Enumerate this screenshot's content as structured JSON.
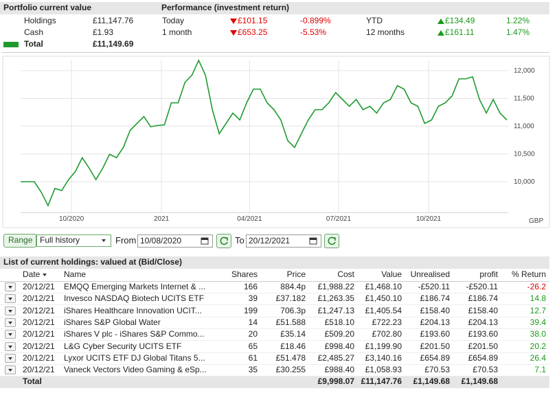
{
  "summary": {
    "title": "Portfolio current value",
    "rows": [
      {
        "label": "Holdings",
        "value": "£11,147.76"
      },
      {
        "label": "Cash",
        "value": "£1.93"
      },
      {
        "label": "Total",
        "value": "£11,149.69"
      }
    ]
  },
  "performance": {
    "title": "Performance (investment return)",
    "rows": [
      {
        "period": "Today",
        "change": "£101.15",
        "pct": "-0.899%",
        "direction": "down"
      },
      {
        "period": "1 month",
        "change": "£653.25",
        "pct": "-5.53%",
        "direction": "down"
      },
      {
        "period": "YTD",
        "change": "£134.49",
        "pct": "1.22%",
        "direction": "up"
      },
      {
        "period": "12 months",
        "change": "£161.11",
        "pct": "1.47%",
        "direction": "up"
      }
    ]
  },
  "chart_data": {
    "type": "line",
    "color": "#1f9a2f",
    "values": [
      10000,
      10000,
      10000,
      9815,
      9570,
      9877,
      9840,
      10037,
      10185,
      10432,
      10247,
      10037,
      10247,
      10494,
      10432,
      10617,
      10926,
      11049,
      11173,
      10988,
      11012,
      11025,
      11420,
      11420,
      11790,
      11914,
      12185,
      11914,
      11296,
      10864,
      11049,
      11235,
      11111,
      11420,
      11667,
      11667,
      11420,
      11296,
      11111,
      10741,
      10617,
      10864,
      11111,
      11296,
      11296,
      11420,
      11605,
      11481,
      11358,
      11481,
      11296,
      11358,
      11235,
      11420,
      11481,
      11728,
      11667,
      11420,
      11358,
      11049,
      11111,
      11358,
      11420,
      11543,
      11852,
      11852,
      11889,
      11481,
      11235,
      11481,
      11235,
      11111
    ],
    "xlim": [
      0,
      71
    ],
    "xticks": [
      {
        "value": 7.43,
        "label": "10/2020"
      },
      {
        "value": 20.57,
        "label": "2021"
      },
      {
        "value": 33.43,
        "label": "04/2021"
      },
      {
        "value": 46.43,
        "label": "07/2021"
      },
      {
        "value": 59.57,
        "label": "10/2021"
      }
    ],
    "ylim": [
      9444,
      12185
    ],
    "yticks": [
      {
        "value": 10000,
        "label": "10,000"
      },
      {
        "value": 10500,
        "label": "10,500"
      },
      {
        "value": 11000,
        "label": "11,000"
      },
      {
        "value": 11500,
        "label": "11,500"
      },
      {
        "value": 12000,
        "label": "12,000"
      }
    ],
    "y_unit": "GBP",
    "grid": true
  },
  "controls": {
    "range_label": "Range",
    "range_select": "Full history",
    "from_label": "From",
    "from_date": "10/08/2020",
    "to_label": "To",
    "to_date": "20/12/2021"
  },
  "holdings": {
    "title": "List of current holdings: valued at (Bid/Close)",
    "columns": [
      "Date",
      "Name",
      "Shares",
      "Price",
      "Cost",
      "Value",
      "Unrealised",
      "profit",
      "% Return"
    ],
    "rows": [
      [
        "20/12/21",
        "EMQQ Emerging Markets Internet & ...",
        "166",
        "884.4p",
        "£1,988.22",
        "£1,468.10",
        "-£520.11",
        "-£520.11",
        "-26.2"
      ],
      [
        "20/12/21",
        "Invesco NASDAQ Biotech UCITS ETF",
        "39",
        "£37.182",
        "£1,263.35",
        "£1,450.10",
        "£186.74",
        "£186.74",
        "14.8"
      ],
      [
        "20/12/21",
        "iShares Healthcare Innovation UCIT...",
        "199",
        "706.3p",
        "£1,247.13",
        "£1,405.54",
        "£158.40",
        "£158.40",
        "12.7"
      ],
      [
        "20/12/21",
        "iShares S&P Global Water",
        "14",
        "£51.588",
        "£518.10",
        "£722.23",
        "£204.13",
        "£204.13",
        "39.4"
      ],
      [
        "20/12/21",
        "iShares V plc - iShares S&P Commo...",
        "20",
        "£35.14",
        "£509.20",
        "£702.80",
        "£193.60",
        "£193.60",
        "38.0"
      ],
      [
        "20/12/21",
        "L&G Cyber Security UCITS ETF",
        "65",
        "£18.46",
        "£998.40",
        "£1,199.90",
        "£201.50",
        "£201.50",
        "20.2"
      ],
      [
        "20/12/21",
        "Lyxor UCITS ETF DJ Global Titans 5...",
        "61",
        "£51.478",
        "£2,485.27",
        "£3,140.16",
        "£654.89",
        "£654.89",
        "26.4"
      ],
      [
        "20/12/21",
        "Vaneck Vectors Video Gaming & eSp...",
        "35",
        "£30.255",
        "£988.40",
        "£1,058.93",
        "£70.53",
        "£70.53",
        "7.1"
      ]
    ],
    "total": {
      "label": "Total",
      "cost": "£9,998.07",
      "value": "£11,147.76",
      "unrealised": "£1,149.68",
      "profit": "£1,149.68"
    }
  }
}
